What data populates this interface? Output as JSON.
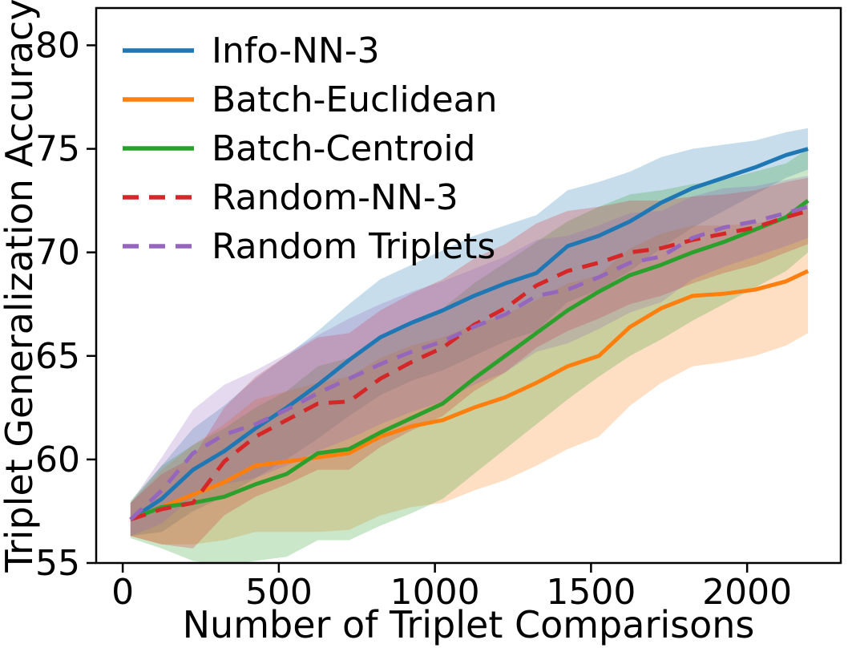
{
  "chart_data": {
    "type": "line",
    "title": "",
    "xlabel": "Number of Triplet Comparisons",
    "ylabel": "Triplet Generalization Accuracy",
    "xlim": [
      -85,
      2300
    ],
    "ylim": [
      55,
      81.8
    ],
    "xticks": [
      0,
      500,
      1000,
      1500,
      2000
    ],
    "yticks": [
      55,
      60,
      65,
      70,
      75,
      80
    ],
    "grid": false,
    "legend_position": "upper left",
    "band_alpha": 0.25,
    "line_width": 5,
    "axis_color": "#000000",
    "x": [
      25,
      125,
      225,
      325,
      425,
      525,
      625,
      725,
      825,
      925,
      1025,
      1125,
      1225,
      1325,
      1425,
      1525,
      1625,
      1725,
      1825,
      1925,
      2025,
      2125,
      2195
    ],
    "series": [
      {
        "name": "Info-NN-3",
        "color": "#1f77b4",
        "style": "solid",
        "values": [
          57.1,
          58.1,
          59.5,
          60.4,
          61.5,
          62.5,
          63.6,
          64.8,
          65.9,
          66.6,
          67.2,
          67.9,
          68.5,
          69.0,
          70.3,
          70.8,
          71.5,
          72.4,
          73.1,
          73.6,
          74.1,
          74.7,
          75.0
        ],
        "band_lo": [
          56.3,
          56.5,
          57.5,
          58.2,
          59.1,
          60.0,
          61.0,
          62.1,
          63.1,
          63.8,
          64.3,
          65.0,
          65.7,
          66.2,
          67.6,
          68.2,
          69.1,
          70.2,
          71.2,
          72.0,
          72.8,
          73.6,
          74.0
        ],
        "band_hi": [
          57.9,
          59.7,
          61.5,
          62.6,
          63.9,
          65.0,
          66.2,
          67.5,
          68.7,
          69.4,
          70.1,
          70.8,
          71.3,
          71.8,
          73.0,
          73.4,
          73.9,
          74.6,
          75.0,
          75.2,
          75.4,
          75.8,
          76.0
        ]
      },
      {
        "name": "Batch-Euclidean",
        "color": "#ff7f0e",
        "style": "solid",
        "values": [
          57.1,
          57.7,
          58.3,
          58.9,
          59.7,
          59.9,
          60.1,
          60.3,
          61.1,
          61.6,
          61.9,
          62.5,
          63.0,
          63.7,
          64.5,
          65.0,
          66.4,
          67.3,
          67.9,
          68.0,
          68.2,
          68.6,
          69.1
        ],
        "band_lo": [
          56.3,
          55.9,
          55.9,
          56.1,
          56.5,
          56.5,
          56.5,
          56.6,
          57.3,
          57.7,
          57.9,
          58.5,
          59.0,
          59.7,
          60.5,
          61.1,
          62.6,
          63.7,
          64.5,
          64.7,
          65.0,
          65.5,
          66.1
        ],
        "band_hi": [
          57.9,
          59.5,
          60.7,
          61.7,
          62.9,
          63.3,
          63.7,
          64.0,
          64.9,
          65.5,
          65.9,
          66.5,
          67.0,
          67.7,
          68.5,
          68.9,
          70.2,
          70.9,
          71.3,
          71.3,
          71.4,
          71.7,
          72.1
        ]
      },
      {
        "name": "Batch-Centroid",
        "color": "#2ca02c",
        "style": "solid",
        "values": [
          57.1,
          57.7,
          57.9,
          58.2,
          58.8,
          59.3,
          60.3,
          60.5,
          61.3,
          62.0,
          62.7,
          63.9,
          65.0,
          66.1,
          67.2,
          68.1,
          68.9,
          69.4,
          70.0,
          70.5,
          71.1,
          71.7,
          72.5
        ],
        "band_lo": [
          56.2,
          55.7,
          55.1,
          54.9,
          55.1,
          55.3,
          56.1,
          56.1,
          56.8,
          57.4,
          58.1,
          59.3,
          60.5,
          61.7,
          62.9,
          64.0,
          65.0,
          65.8,
          66.7,
          67.5,
          68.3,
          69.1,
          70.0
        ],
        "band_hi": [
          58.0,
          59.7,
          60.7,
          61.5,
          62.5,
          63.3,
          64.5,
          64.9,
          65.8,
          66.6,
          67.3,
          68.5,
          69.5,
          70.5,
          71.5,
          72.2,
          72.8,
          73.0,
          73.3,
          73.5,
          73.9,
          74.3,
          75.0
        ]
      },
      {
        "name": "Random-NN-3",
        "color": "#d62728",
        "style": "dashed",
        "values": [
          57.1,
          57.6,
          57.9,
          59.9,
          61.1,
          61.9,
          62.7,
          62.8,
          63.9,
          64.7,
          65.4,
          66.5,
          67.3,
          68.4,
          69.1,
          69.5,
          70.0,
          70.2,
          70.6,
          70.9,
          71.2,
          71.7,
          72.0
        ],
        "band_lo": [
          56.3,
          55.9,
          55.7,
          57.3,
          58.2,
          58.8,
          59.5,
          59.5,
          60.6,
          61.4,
          62.1,
          63.3,
          64.2,
          65.4,
          66.2,
          66.8,
          67.5,
          67.9,
          68.5,
          69.0,
          69.4,
          70.0,
          70.4
        ],
        "band_hi": [
          57.9,
          59.3,
          60.1,
          62.5,
          64.0,
          65.0,
          65.9,
          66.1,
          67.2,
          68.0,
          68.7,
          69.7,
          70.4,
          71.4,
          72.0,
          72.2,
          72.5,
          72.5,
          72.7,
          72.8,
          73.0,
          73.4,
          73.6
        ]
      },
      {
        "name": "Random Triplets",
        "color": "#9467bd",
        "style": "dashed",
        "values": [
          57.1,
          58.5,
          60.3,
          61.2,
          61.7,
          62.4,
          63.2,
          63.9,
          64.6,
          65.2,
          65.7,
          66.4,
          67.0,
          67.9,
          68.2,
          68.8,
          69.5,
          69.8,
          70.7,
          71.2,
          71.5,
          71.9,
          72.2
        ],
        "band_lo": [
          56.3,
          56.9,
          58.2,
          58.8,
          59.1,
          59.7,
          60.4,
          61.0,
          61.7,
          62.3,
          62.8,
          63.6,
          64.2,
          65.2,
          65.6,
          66.3,
          67.1,
          67.6,
          68.7,
          69.3,
          69.8,
          70.3,
          70.7
        ],
        "band_hi": [
          57.9,
          60.1,
          62.4,
          63.6,
          64.3,
          65.1,
          66.0,
          66.8,
          67.5,
          68.1,
          68.6,
          69.2,
          69.8,
          70.6,
          70.8,
          71.3,
          71.9,
          72.0,
          72.7,
          73.1,
          73.2,
          73.5,
          73.7
        ]
      }
    ]
  }
}
